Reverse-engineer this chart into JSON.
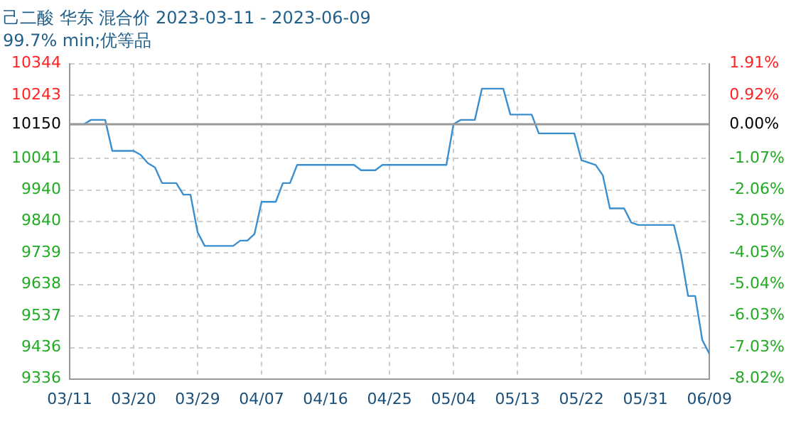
{
  "chart_data": {
    "type": "line",
    "title": "己二酸 华东 混合价 2023-03-11 - 2023-06-09",
    "subtitle": "99.7% min;优等品",
    "x": [
      "--03-11",
      "--03-13",
      "--03-14",
      "--03-16",
      "--03-17",
      "--03-20",
      "--03-21",
      "--03-22",
      "--03-23",
      "--03-24",
      "--03-26",
      "--03-27",
      "--03-28",
      "--03-29",
      "--03-30",
      "--04-03",
      "--04-04",
      "--04-05",
      "--04-06",
      "--04-07",
      "--04-09",
      "--04-10",
      "--04-11",
      "--04-12",
      "--04-20",
      "--04-21",
      "--04-23",
      "--04-24",
      "--05-03",
      "--05-04",
      "--05-05",
      "--05-07",
      "--05-08",
      "--05-11",
      "--05-12",
      "--05-15",
      "--05-16",
      "--05-21",
      "--05-22",
      "--05-24",
      "--05-25",
      "--05-26",
      "--05-28",
      "--05-29",
      "--05-30",
      "--06-04",
      "--06-05",
      "--06-06",
      "--06-07",
      "--06-08",
      "--06-09"
    ],
    "series": [
      {
        "color": "#3a8fd0",
        "values": [
          10150,
          10150,
          10164,
          10164,
          10065,
          10065,
          10052,
          10026,
          10012,
          9962,
          9962,
          9925,
          9925,
          9805,
          9761,
          9761,
          9778,
          9778,
          9799,
          9902,
          9902,
          9962,
          9962,
          10020,
          10020,
          10003,
          10003,
          10020,
          10020,
          10150,
          10164,
          10164,
          10264,
          10264,
          10181,
          10181,
          10121,
          10121,
          10035,
          10020,
          9987,
          9881,
          9881,
          9836,
          9828,
          9828,
          9734,
          9601,
          9601,
          9460,
          9416
        ]
      }
    ],
    "xlim": [
      "--03-11",
      "--06-09"
    ],
    "xticks": [
      {
        "value": "--03-11",
        "label": "03/11"
      },
      {
        "value": "--03-20",
        "label": "03/20"
      },
      {
        "value": "--03-29",
        "label": "03/29"
      },
      {
        "value": "--04-07",
        "label": "04/07"
      },
      {
        "value": "--04-16",
        "label": "04/16"
      },
      {
        "value": "--04-25",
        "label": "04/25"
      },
      {
        "value": "--05-04",
        "label": "05/04"
      },
      {
        "value": "--05-13",
        "label": "05/13"
      },
      {
        "value": "--05-22",
        "label": "05/22"
      },
      {
        "value": "--05-31",
        "label": "05/31"
      },
      {
        "value": "--06-09",
        "label": "06/09"
      }
    ],
    "ylim": [
      9336,
      10344
    ],
    "yticks": [
      9336,
      9436,
      9537,
      9638,
      9739,
      9840,
      9940,
      10041,
      10150,
      10243,
      10344
    ],
    "y2lim": [
      -8.02,
      1.91
    ],
    "y2ticks": [
      {
        "value": -8.02,
        "label": "-8.02%"
      },
      {
        "value": -7.03,
        "label": "-7.03%"
      },
      {
        "value": -6.03,
        "label": "-6.03%"
      },
      {
        "value": -5.04,
        "label": "-5.04%"
      },
      {
        "value": -4.05,
        "label": "-4.05%"
      },
      {
        "value": -3.05,
        "label": "-3.05%"
      },
      {
        "value": -2.06,
        "label": "-2.06%"
      },
      {
        "value": -1.07,
        "label": "-1.07%"
      },
      {
        "value": 0,
        "label": "0.00%"
      },
      {
        "value": 0.92,
        "label": "0.92%"
      },
      {
        "value": 1.91,
        "label": "1.91%"
      }
    ],
    "ref_lines": [
      {
        "axis": "y",
        "value": 10150,
        "color": "#999999"
      }
    ],
    "grid": true,
    "legend": false,
    "marker": "none",
    "line_style": "solid"
  }
}
